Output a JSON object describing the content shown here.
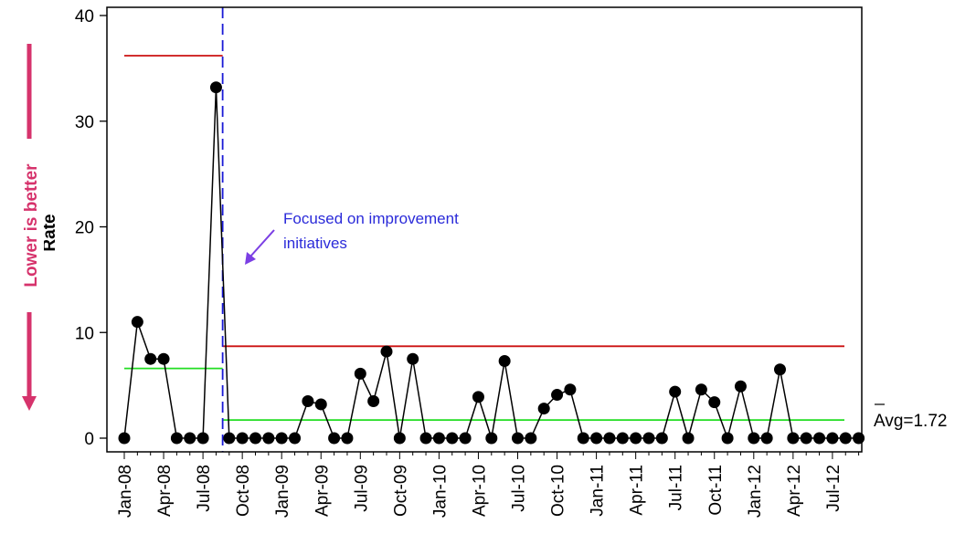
{
  "chart_data": {
    "type": "line",
    "ylabel": "Rate",
    "side_note": "Lower is better",
    "ylim": [
      0,
      40
    ],
    "y_ticks": [
      0,
      10,
      20,
      30,
      40
    ],
    "x_tick_labels": [
      "Jan-08",
      "Apr-08",
      "Jul-08",
      "Oct-08",
      "Jan-09",
      "Apr-09",
      "Jul-09",
      "Oct-09",
      "Jan-10",
      "Apr-10",
      "Jul-10",
      "Oct-10",
      "Jan-11",
      "Apr-11",
      "Jul-11",
      "Oct-11",
      "Jan-12",
      "Apr-12",
      "Jul-12"
    ],
    "months": [
      "Jan-08",
      "Feb-08",
      "Mar-08",
      "Apr-08",
      "May-08",
      "Jun-08",
      "Jul-08",
      "Aug-08",
      "Sep-08",
      "Oct-08",
      "Nov-08",
      "Dec-08",
      "Jan-09",
      "Feb-09",
      "Mar-09",
      "Apr-09",
      "May-09",
      "Jun-09",
      "Jul-09",
      "Aug-09",
      "Sep-09",
      "Oct-09",
      "Nov-09",
      "Dec-09",
      "Jan-10",
      "Feb-10",
      "Mar-10",
      "Apr-10",
      "May-10",
      "Jun-10",
      "Jul-10",
      "Aug-10",
      "Sep-10",
      "Oct-10",
      "Nov-10",
      "Dec-10",
      "Jan-11",
      "Feb-11",
      "Mar-11",
      "Apr-11",
      "May-11",
      "Jun-11",
      "Jul-11",
      "Aug-11",
      "Sep-11",
      "Oct-11",
      "Nov-11",
      "Dec-11",
      "Jan-12",
      "Feb-12",
      "Mar-12",
      "Apr-12",
      "May-12",
      "Jun-12",
      "Jul-12",
      "Aug-12",
      "Sep-12"
    ],
    "values": [
      0,
      11,
      7.5,
      7.5,
      0,
      0,
      0,
      33.2,
      0,
      0,
      0,
      0,
      0,
      0,
      3.5,
      3.2,
      0,
      0,
      6.1,
      3.5,
      8.2,
      0,
      7.5,
      0,
      0,
      0,
      0,
      3.9,
      0,
      7.3,
      0,
      0,
      2.8,
      4.1,
      4.6,
      0,
      0,
      0,
      0,
      0,
      0,
      0,
      4.4,
      0,
      4.6,
      3.4,
      0,
      4.9,
      0,
      0,
      6.5,
      0,
      0,
      0,
      0,
      0,
      0
    ],
    "phases": [
      {
        "start": "Jan-08",
        "end": "Aug-08",
        "center": 6.6,
        "ucl": 36.2
      },
      {
        "start": "Sep-08",
        "end": "Sep-12",
        "center": 1.72,
        "ucl": 8.7
      }
    ],
    "phase_break_between": [
      "Aug-08",
      "Sep-08"
    ],
    "annotation": {
      "line1": "Focused on improvement",
      "line2": "initiatives"
    },
    "avg_label": "Avg=1.72",
    "colors": {
      "center": "#22dd22",
      "ucl": "#cc1111",
      "phase_break": "#1a1ad6",
      "marker": "#000000",
      "annotation": "#2a2ad9",
      "arrow_annotation": "#7b3fe4",
      "lower_is_better": "#d6336c"
    }
  }
}
